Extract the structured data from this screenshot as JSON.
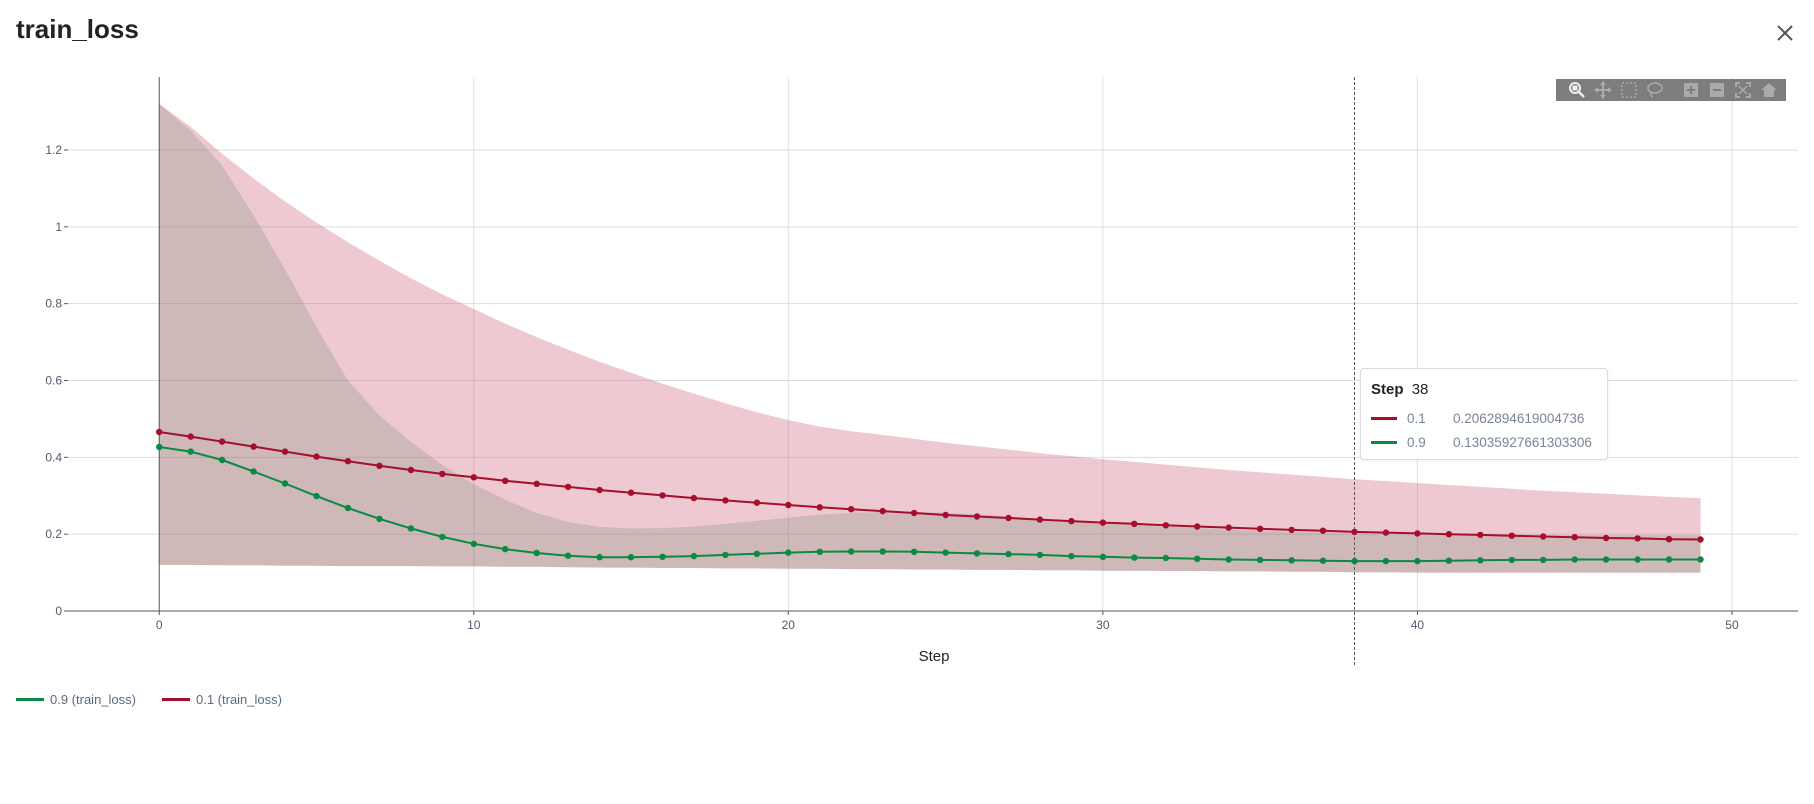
{
  "title": "train_loss",
  "close_icon": "close-icon",
  "modebar": [
    "zoom-icon",
    "pan-icon",
    "box-select-icon",
    "lasso-select-icon",
    "zoom-in-icon",
    "zoom-out-icon",
    "autoscale-icon",
    "reset-axes-icon"
  ],
  "tooltip": {
    "label": "Step",
    "step": "38",
    "rows": [
      {
        "name": "0.1",
        "value": "0.2062894619004736",
        "color": "#a50f2c"
      },
      {
        "name": "0.9",
        "value": "0.13035927661303306",
        "color": "#0b8a43"
      }
    ]
  },
  "legend": [
    {
      "label": "0.9 (train_loss)",
      "color": "#0b8a43"
    },
    {
      "label": "0.1 (train_loss)",
      "color": "#a50f2c"
    }
  ],
  "chart_data": {
    "type": "line",
    "title": "",
    "xlabel": "Step",
    "ylabel": "",
    "xlim": [
      -2.9,
      52.1
    ],
    "ylim": [
      0,
      1.39
    ],
    "xticks": [
      0,
      10,
      20,
      30,
      40,
      50
    ],
    "xtick_labels": [
      "0",
      "10",
      "20",
      "30",
      "40",
      "50"
    ],
    "yticks": [
      0,
      0.2,
      0.4,
      0.6,
      0.8,
      1,
      1.2
    ],
    "ytick_labels": [
      "0",
      "0.2",
      "0.4",
      "0.6",
      "0.8",
      "1",
      "1.2"
    ],
    "grid": true,
    "hover_step": 38,
    "x": [
      0,
      1,
      2,
      3,
      4,
      5,
      6,
      7,
      8,
      9,
      10,
      11,
      12,
      13,
      14,
      15,
      16,
      17,
      18,
      19,
      20,
      21,
      22,
      23,
      24,
      25,
      26,
      27,
      28,
      29,
      30,
      31,
      32,
      33,
      34,
      35,
      36,
      37,
      38,
      39,
      40,
      41,
      42,
      43,
      44,
      45,
      46,
      47,
      48,
      49
    ],
    "series": [
      {
        "name": "0.9",
        "color": "#0b8a43",
        "band_color": "rgba(11,138,67,0.2)",
        "values": [
          0.427,
          0.415,
          0.393,
          0.363,
          0.332,
          0.299,
          0.268,
          0.24,
          0.215,
          0.193,
          0.175,
          0.161,
          0.151,
          0.144,
          0.14,
          0.14,
          0.141,
          0.143,
          0.146,
          0.149,
          0.152,
          0.154,
          0.155,
          0.155,
          0.154,
          0.152,
          0.15,
          0.148,
          0.146,
          0.143,
          0.141,
          0.139,
          0.138,
          0.136,
          0.134,
          0.133,
          0.132,
          0.131,
          0.13,
          0.13,
          0.13,
          0.131,
          0.132,
          0.133,
          0.133,
          0.134,
          0.134,
          0.134,
          0.134,
          0.134
        ],
        "upper": [
          1.32,
          1.25,
          1.16,
          1.03,
          0.89,
          0.74,
          0.6,
          0.51,
          0.44,
          0.38,
          0.33,
          0.29,
          0.255,
          0.232,
          0.219,
          0.215,
          0.216,
          0.22,
          0.227,
          0.235,
          0.243,
          0.251,
          0.256,
          0.258,
          0.258,
          0.256,
          0.252,
          0.246,
          0.24,
          0.235,
          0.23,
          0.225,
          0.22,
          0.216,
          0.212,
          0.209,
          0.206,
          0.204,
          0.202,
          0.2,
          0.199,
          0.198,
          0.198,
          0.197,
          0.197,
          0.197,
          0.197,
          0.197,
          0.197,
          0.197
        ],
        "lower": [
          0.12,
          0.12,
          0.119,
          0.119,
          0.118,
          0.118,
          0.117,
          0.117,
          0.117,
          0.116,
          0.116,
          0.115,
          0.115,
          0.114,
          0.113,
          0.113,
          0.112,
          0.112,
          0.111,
          0.111,
          0.11,
          0.11,
          0.109,
          0.109,
          0.108,
          0.108,
          0.107,
          0.107,
          0.106,
          0.106,
          0.105,
          0.105,
          0.104,
          0.104,
          0.103,
          0.103,
          0.102,
          0.102,
          0.101,
          0.101,
          0.1,
          0.1,
          0.1,
          0.1,
          0.1,
          0.1,
          0.1,
          0.1,
          0.1,
          0.1
        ]
      },
      {
        "name": "0.1",
        "color": "#a50f2c",
        "band_color": "rgba(205,92,117,0.33)",
        "values": [
          0.466,
          0.454,
          0.441,
          0.428,
          0.415,
          0.402,
          0.39,
          0.378,
          0.367,
          0.357,
          0.348,
          0.339,
          0.331,
          0.323,
          0.315,
          0.308,
          0.301,
          0.294,
          0.288,
          0.282,
          0.276,
          0.27,
          0.265,
          0.26,
          0.255,
          0.25,
          0.246,
          0.242,
          0.238,
          0.234,
          0.23,
          0.227,
          0.223,
          0.22,
          0.217,
          0.214,
          0.211,
          0.209,
          0.206,
          0.204,
          0.202,
          0.2,
          0.198,
          0.196,
          0.194,
          0.192,
          0.19,
          0.189,
          0.187,
          0.186
        ],
        "upper": [
          1.32,
          1.26,
          1.19,
          1.126,
          1.066,
          1.011,
          0.96,
          0.912,
          0.866,
          0.824,
          0.786,
          0.748,
          0.713,
          0.68,
          0.649,
          0.62,
          0.592,
          0.566,
          0.541,
          0.517,
          0.497,
          0.48,
          0.468,
          0.458,
          0.448,
          0.438,
          0.429,
          0.42,
          0.411,
          0.403,
          0.395,
          0.388,
          0.381,
          0.374,
          0.367,
          0.361,
          0.355,
          0.349,
          0.343,
          0.338,
          0.333,
          0.328,
          0.323,
          0.318,
          0.313,
          0.309,
          0.305,
          0.301,
          0.297,
          0.294
        ],
        "lower": [
          0.12,
          0.12,
          0.119,
          0.119,
          0.118,
          0.118,
          0.117,
          0.117,
          0.117,
          0.116,
          0.116,
          0.115,
          0.115,
          0.114,
          0.113,
          0.113,
          0.112,
          0.112,
          0.111,
          0.111,
          0.11,
          0.11,
          0.109,
          0.109,
          0.108,
          0.108,
          0.107,
          0.107,
          0.106,
          0.106,
          0.105,
          0.105,
          0.104,
          0.104,
          0.103,
          0.103,
          0.102,
          0.102,
          0.101,
          0.101,
          0.1,
          0.1,
          0.1,
          0.1,
          0.1,
          0.1,
          0.1,
          0.1,
          0.1,
          0.1
        ]
      }
    ]
  }
}
